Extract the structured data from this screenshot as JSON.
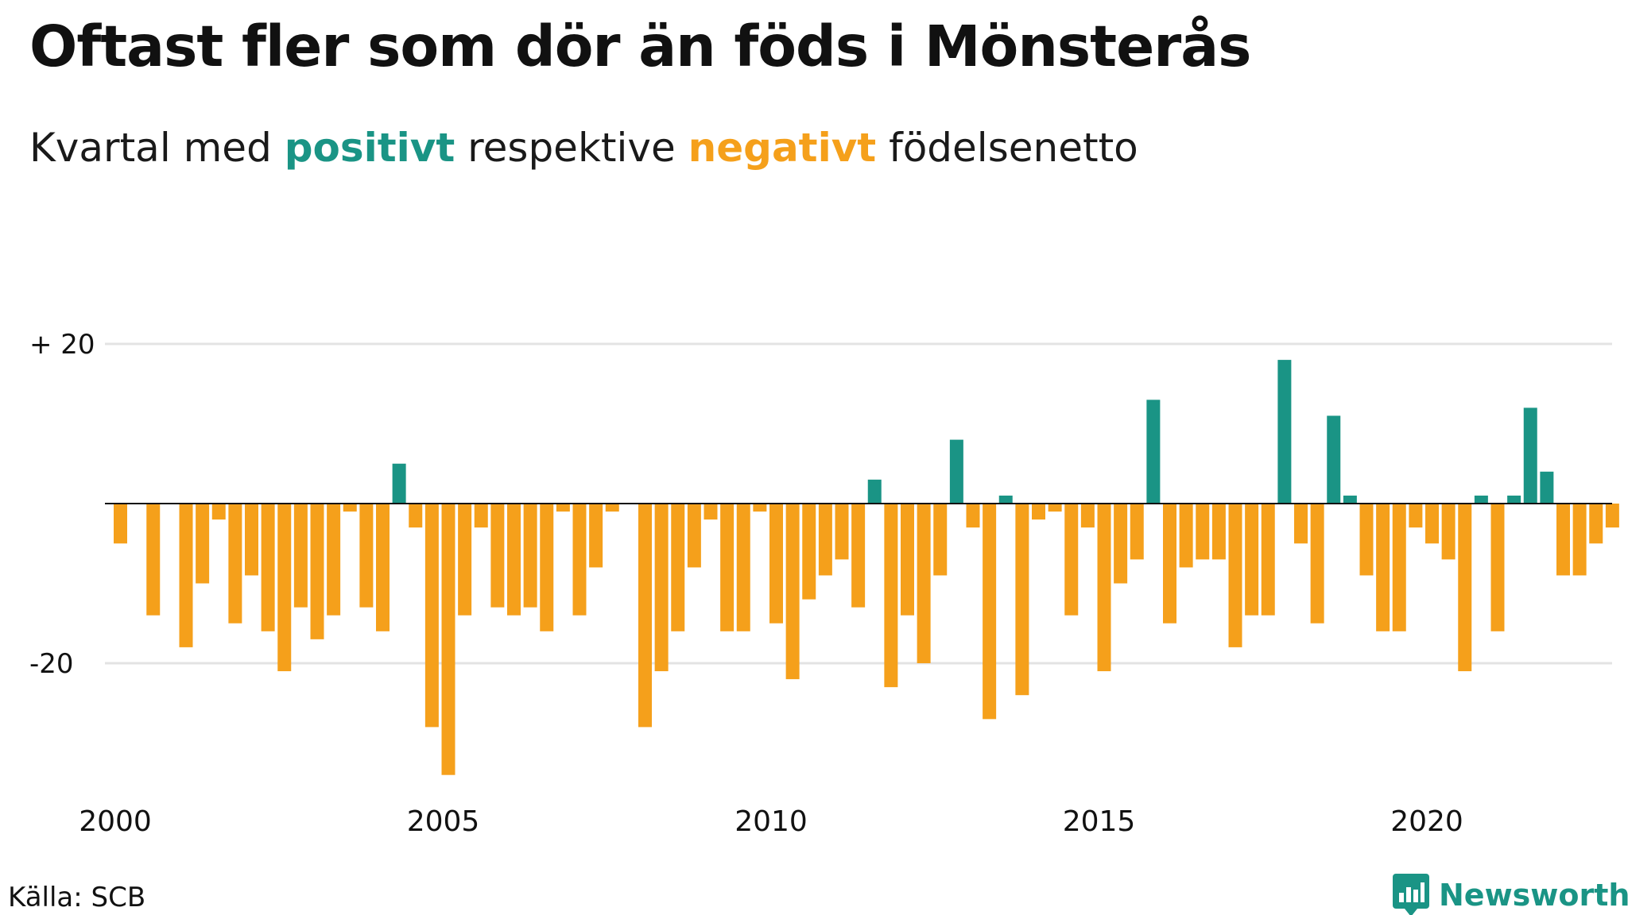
{
  "title": "Oftast fler som dör än föds i Mönsterås",
  "subtitle": {
    "prefix": "Kvartal med ",
    "positive_word": "positivt",
    "middle": " respektive ",
    "negative_word": "negativt",
    "suffix": " födelsenetto"
  },
  "source": "Källa: SCB",
  "brand": {
    "name": "Newsworthy",
    "logo_icon": "newsworthy-bar-chart-logo-icon"
  },
  "colors": {
    "positive": "#1a9485",
    "negative": "#f5a01b",
    "gridline": "#e3e3e3",
    "zero_line": "#111111"
  },
  "chart_data": {
    "type": "bar",
    "x_label": "",
    "y_label": "",
    "x_start": 2000.0,
    "x_step_years": 0.25,
    "x_ticks": [
      {
        "value": 2000,
        "label": "2000"
      },
      {
        "value": 2005,
        "label": "2005"
      },
      {
        "value": 2010,
        "label": "2010"
      },
      {
        "value": 2015,
        "label": "2015"
      },
      {
        "value": 2020,
        "label": "2020"
      }
    ],
    "y_ticks": [
      {
        "value": 20,
        "label": "+ 20"
      },
      {
        "value": -20,
        "label": "-20"
      }
    ],
    "y_range": [
      -36,
      22
    ],
    "grid": true,
    "legend": "in subtitle",
    "values": [
      -5,
      0,
      -14,
      0,
      -18,
      -10,
      -2,
      -15,
      -9,
      -16,
      -21,
      -13,
      -17,
      -14,
      -1,
      -13,
      -16,
      5,
      -3,
      -28,
      -34,
      -14,
      -3,
      -13,
      -14,
      -13,
      -16,
      -1,
      -14,
      -8,
      -1,
      0,
      -28,
      -21,
      -16,
      -8,
      -2,
      -16,
      -16,
      -1,
      -15,
      -22,
      -12,
      -9,
      -7,
      -13,
      3,
      -23,
      -14,
      -20,
      -9,
      8,
      -3,
      -27,
      1,
      -24,
      -2,
      -1,
      -14,
      -3,
      -21,
      -10,
      -7,
      13,
      -15,
      -8,
      -7,
      -7,
      -18,
      -14,
      -14,
      18,
      -5,
      -15,
      11,
      1,
      -9,
      -16,
      -16,
      -3,
      -5,
      -7,
      -21,
      1,
      -16,
      1,
      12,
      4,
      -9,
      -9,
      -5,
      -3
    ]
  }
}
